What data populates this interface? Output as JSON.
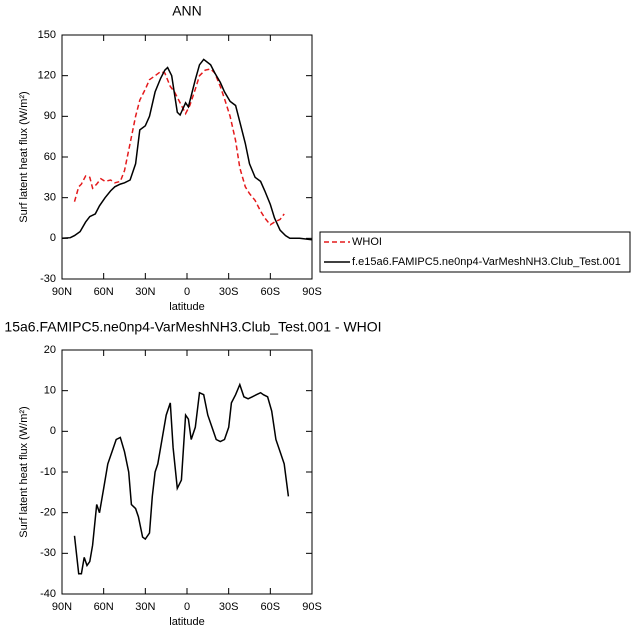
{
  "chart_data": [
    {
      "type": "line",
      "title": "ANN",
      "xlabel": "latitude",
      "ylabel": "Surf latent heat flux (W/m²)",
      "xlim": [
        90,
        -90
      ],
      "xticks": [
        {
          "value": 90,
          "label": "90N"
        },
        {
          "value": 60,
          "label": "60N"
        },
        {
          "value": 30,
          "label": "30N"
        },
        0,
        {
          "value": -30,
          "label": "30S"
        },
        {
          "value": -60,
          "label": "60S"
        },
        {
          "value": -90,
          "label": "90S"
        }
      ],
      "ylim": [
        -30,
        150
      ],
      "yticks": [
        -30,
        0,
        30,
        60,
        90,
        120,
        150
      ],
      "legend": "right",
      "series": [
        {
          "name": "WHOI",
          "color": "#e41a1c",
          "linestyle": "dashed",
          "x": [
            81,
            78,
            76,
            73,
            70,
            68,
            65,
            62,
            59,
            55,
            52,
            48,
            45,
            41,
            37,
            34,
            30,
            27,
            23,
            19,
            16,
            12,
            9,
            5,
            1,
            -2,
            -6,
            -9,
            -13,
            -17,
            -20,
            -24,
            -27,
            -31,
            -35,
            -38,
            -42,
            -45,
            -49,
            -53,
            -56,
            -60,
            -63,
            -67,
            -70
          ],
          "values": [
            27,
            38,
            40,
            46,
            45,
            37,
            40,
            44,
            42,
            43,
            41,
            42,
            50,
            70,
            90,
            102,
            110,
            117,
            120,
            123,
            122,
            112,
            108,
            100,
            92,
            98,
            110,
            120,
            124,
            125,
            122,
            112,
            103,
            90,
            72,
            52,
            38,
            33,
            28,
            20,
            15,
            10,
            12,
            14,
            18
          ]
        },
        {
          "name": "f.e15a6.FAMIPC5.ne0np4-VarMeshNH3.Club_Test.001",
          "color": "#000000",
          "linestyle": "solid",
          "x": [
            90,
            84,
            81,
            77,
            73,
            70,
            66,
            63,
            59,
            55,
            52,
            48,
            45,
            41,
            37,
            34,
            30,
            27,
            23,
            19,
            16,
            14,
            11,
            7,
            5,
            1,
            -1,
            -6,
            -9,
            -12,
            -17,
            -20,
            -24,
            -27,
            -31,
            -35,
            -38,
            -42,
            -45,
            -49,
            -53,
            -56,
            -60,
            -63,
            -67,
            -71,
            -74,
            -81,
            -90
          ],
          "values": [
            0,
            0.5,
            2,
            5,
            12,
            16,
            18,
            24,
            30,
            35,
            38,
            40,
            41,
            43,
            55,
            80,
            83,
            90,
            108,
            118,
            124,
            126,
            120,
            93,
            91,
            100,
            97,
            117,
            128,
            132,
            128,
            122,
            115,
            108,
            101,
            98,
            86,
            70,
            55,
            45,
            42,
            35,
            25,
            15,
            6,
            2,
            0,
            0,
            -1
          ]
        }
      ]
    },
    {
      "type": "line",
      "title": "15a6.FAMIPC5.ne0np4-VarMeshNH3.Club_Test.001 - WHOI",
      "xlabel": "latitude",
      "ylabel": "Surf latent heat flux (W/m²)",
      "xlim": [
        90,
        -90
      ],
      "xticks": [
        {
          "value": 90,
          "label": "90N"
        },
        {
          "value": 60,
          "label": "60N"
        },
        {
          "value": 30,
          "label": "30N"
        },
        0,
        {
          "value": -30,
          "label": "30S"
        },
        {
          "value": -60,
          "label": "60S"
        },
        {
          "value": -90,
          "label": "90S"
        }
      ],
      "ylim": [
        -40,
        20
      ],
      "yticks": [
        -40,
        -30,
        -20,
        -10,
        0,
        10,
        20
      ],
      "series": [
        {
          "color": "#000000",
          "linestyle": "solid",
          "x": [
            81,
            78,
            76,
            74,
            72,
            70,
            68,
            65,
            63,
            60,
            57,
            54,
            51,
            48,
            45,
            42,
            40,
            37,
            35,
            32,
            30,
            27,
            25,
            23,
            21,
            18,
            15,
            12,
            10,
            7,
            4,
            1,
            -1,
            -3,
            -6,
            -9,
            -12,
            -15,
            -18,
            -21,
            -24,
            -27,
            -30,
            -32,
            -35,
            -38,
            -41,
            -44,
            -47,
            -50,
            -53,
            -55,
            -58,
            -61,
            -64,
            -67,
            -70,
            -73
          ],
          "values": [
            -25.7,
            -35,
            -35,
            -31,
            -33,
            -32,
            -28,
            -18,
            -20,
            -14,
            -8,
            -5,
            -2,
            -1.5,
            -5,
            -10,
            -18,
            -19,
            -21,
            -26,
            -26.5,
            -25,
            -16,
            -10,
            -8,
            -2,
            4,
            7,
            -4,
            -14,
            -12,
            4,
            3,
            -2,
            1,
            9.5,
            9,
            4,
            1,
            -2,
            -2.5,
            -2,
            1,
            7,
            9,
            11.5,
            8.5,
            8,
            8.5,
            9,
            9.5,
            9,
            8.5,
            5,
            -2,
            -5,
            -8,
            -16
          ]
        }
      ]
    }
  ]
}
